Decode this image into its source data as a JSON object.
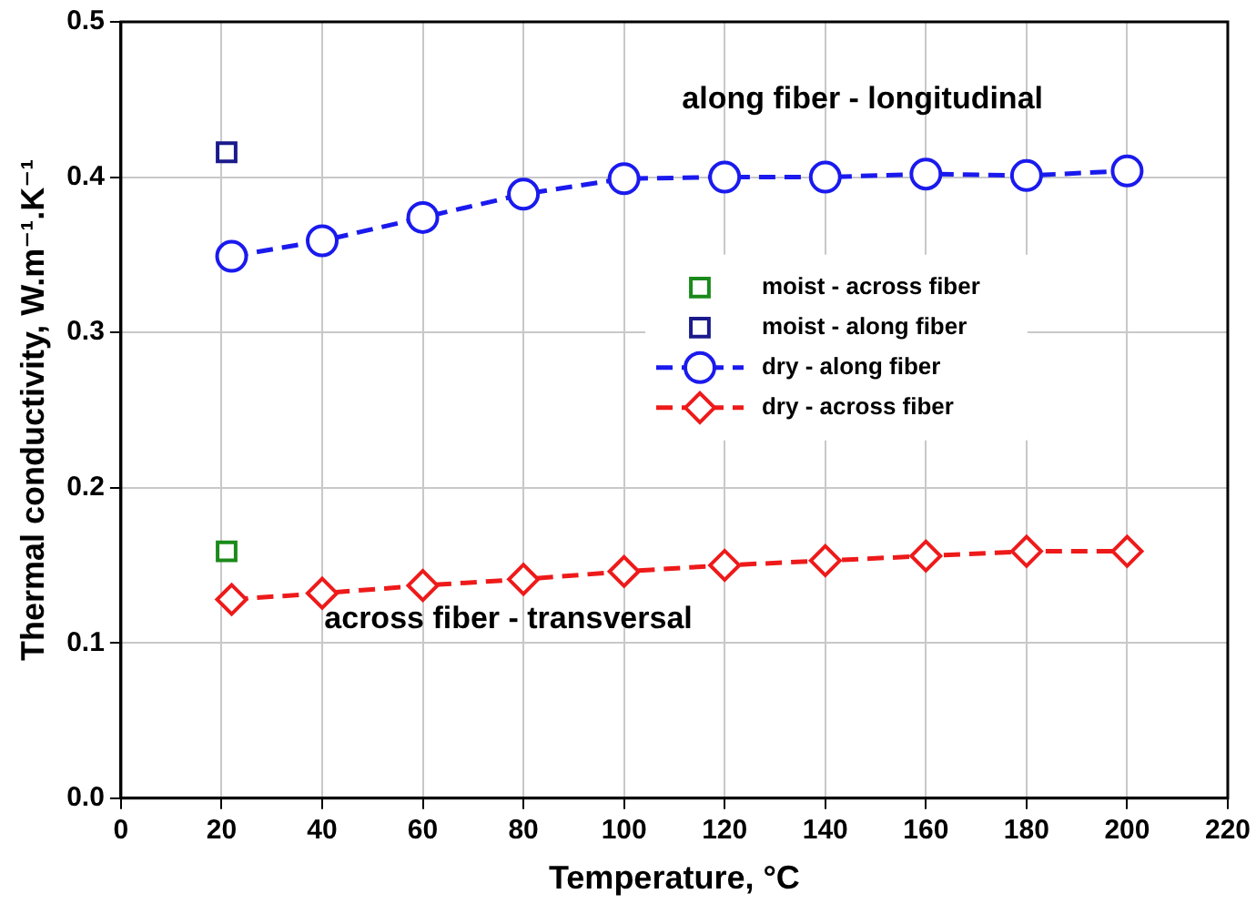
{
  "chart_data": {
    "type": "line",
    "xlabel": "Temperature, °C",
    "ylabel": "Thermal conductivity, W.m⁻¹.K⁻¹",
    "xlim": [
      0,
      220
    ],
    "xticks": [
      0,
      20,
      40,
      60,
      80,
      100,
      120,
      140,
      160,
      180,
      200,
      220
    ],
    "ylim": [
      0,
      0.5
    ],
    "yticks": [
      {
        "value": 0,
        "label": "0.0"
      },
      {
        "value": 0.1,
        "label": "0.1"
      },
      {
        "value": 0.2,
        "label": "0.2"
      },
      {
        "value": 0.3,
        "label": "0.3"
      },
      {
        "value": 0.4,
        "label": "0.4"
      },
      {
        "value": 0.5,
        "label": "0.5"
      }
    ],
    "grid": true,
    "legend": "right",
    "annotations": [
      "along fiber - longitudinal",
      "across fiber - transversal"
    ],
    "series": [
      {
        "name": "moist - across fiber",
        "type": "scatter",
        "marker": "square",
        "color": "#1a8a1a",
        "x": [
          21
        ],
        "values": [
          0.159
        ]
      },
      {
        "name": "moist - along fiber",
        "type": "scatter",
        "marker": "square",
        "color": "#1a1a8c",
        "x": [
          21
        ],
        "values": [
          0.416
        ]
      },
      {
        "name": "dry - along fiber",
        "type": "line",
        "marker": "circle",
        "line_style": "dashed",
        "color": "#1a1aee",
        "x": [
          22,
          40,
          60,
          80,
          100,
          120,
          140,
          160,
          180,
          200
        ],
        "values": [
          0.349,
          0.359,
          0.374,
          0.389,
          0.399,
          0.4,
          0.4,
          0.402,
          0.401,
          0.404
        ]
      },
      {
        "name": "dry - across fiber",
        "type": "line",
        "marker": "diamond",
        "line_style": "dashed",
        "color": "#ee1a1a",
        "x": [
          22,
          40,
          60,
          80,
          100,
          120,
          140,
          160,
          180,
          200
        ],
        "values": [
          0.128,
          0.132,
          0.137,
          0.141,
          0.146,
          0.15,
          0.153,
          0.156,
          0.159,
          0.159
        ]
      }
    ]
  }
}
